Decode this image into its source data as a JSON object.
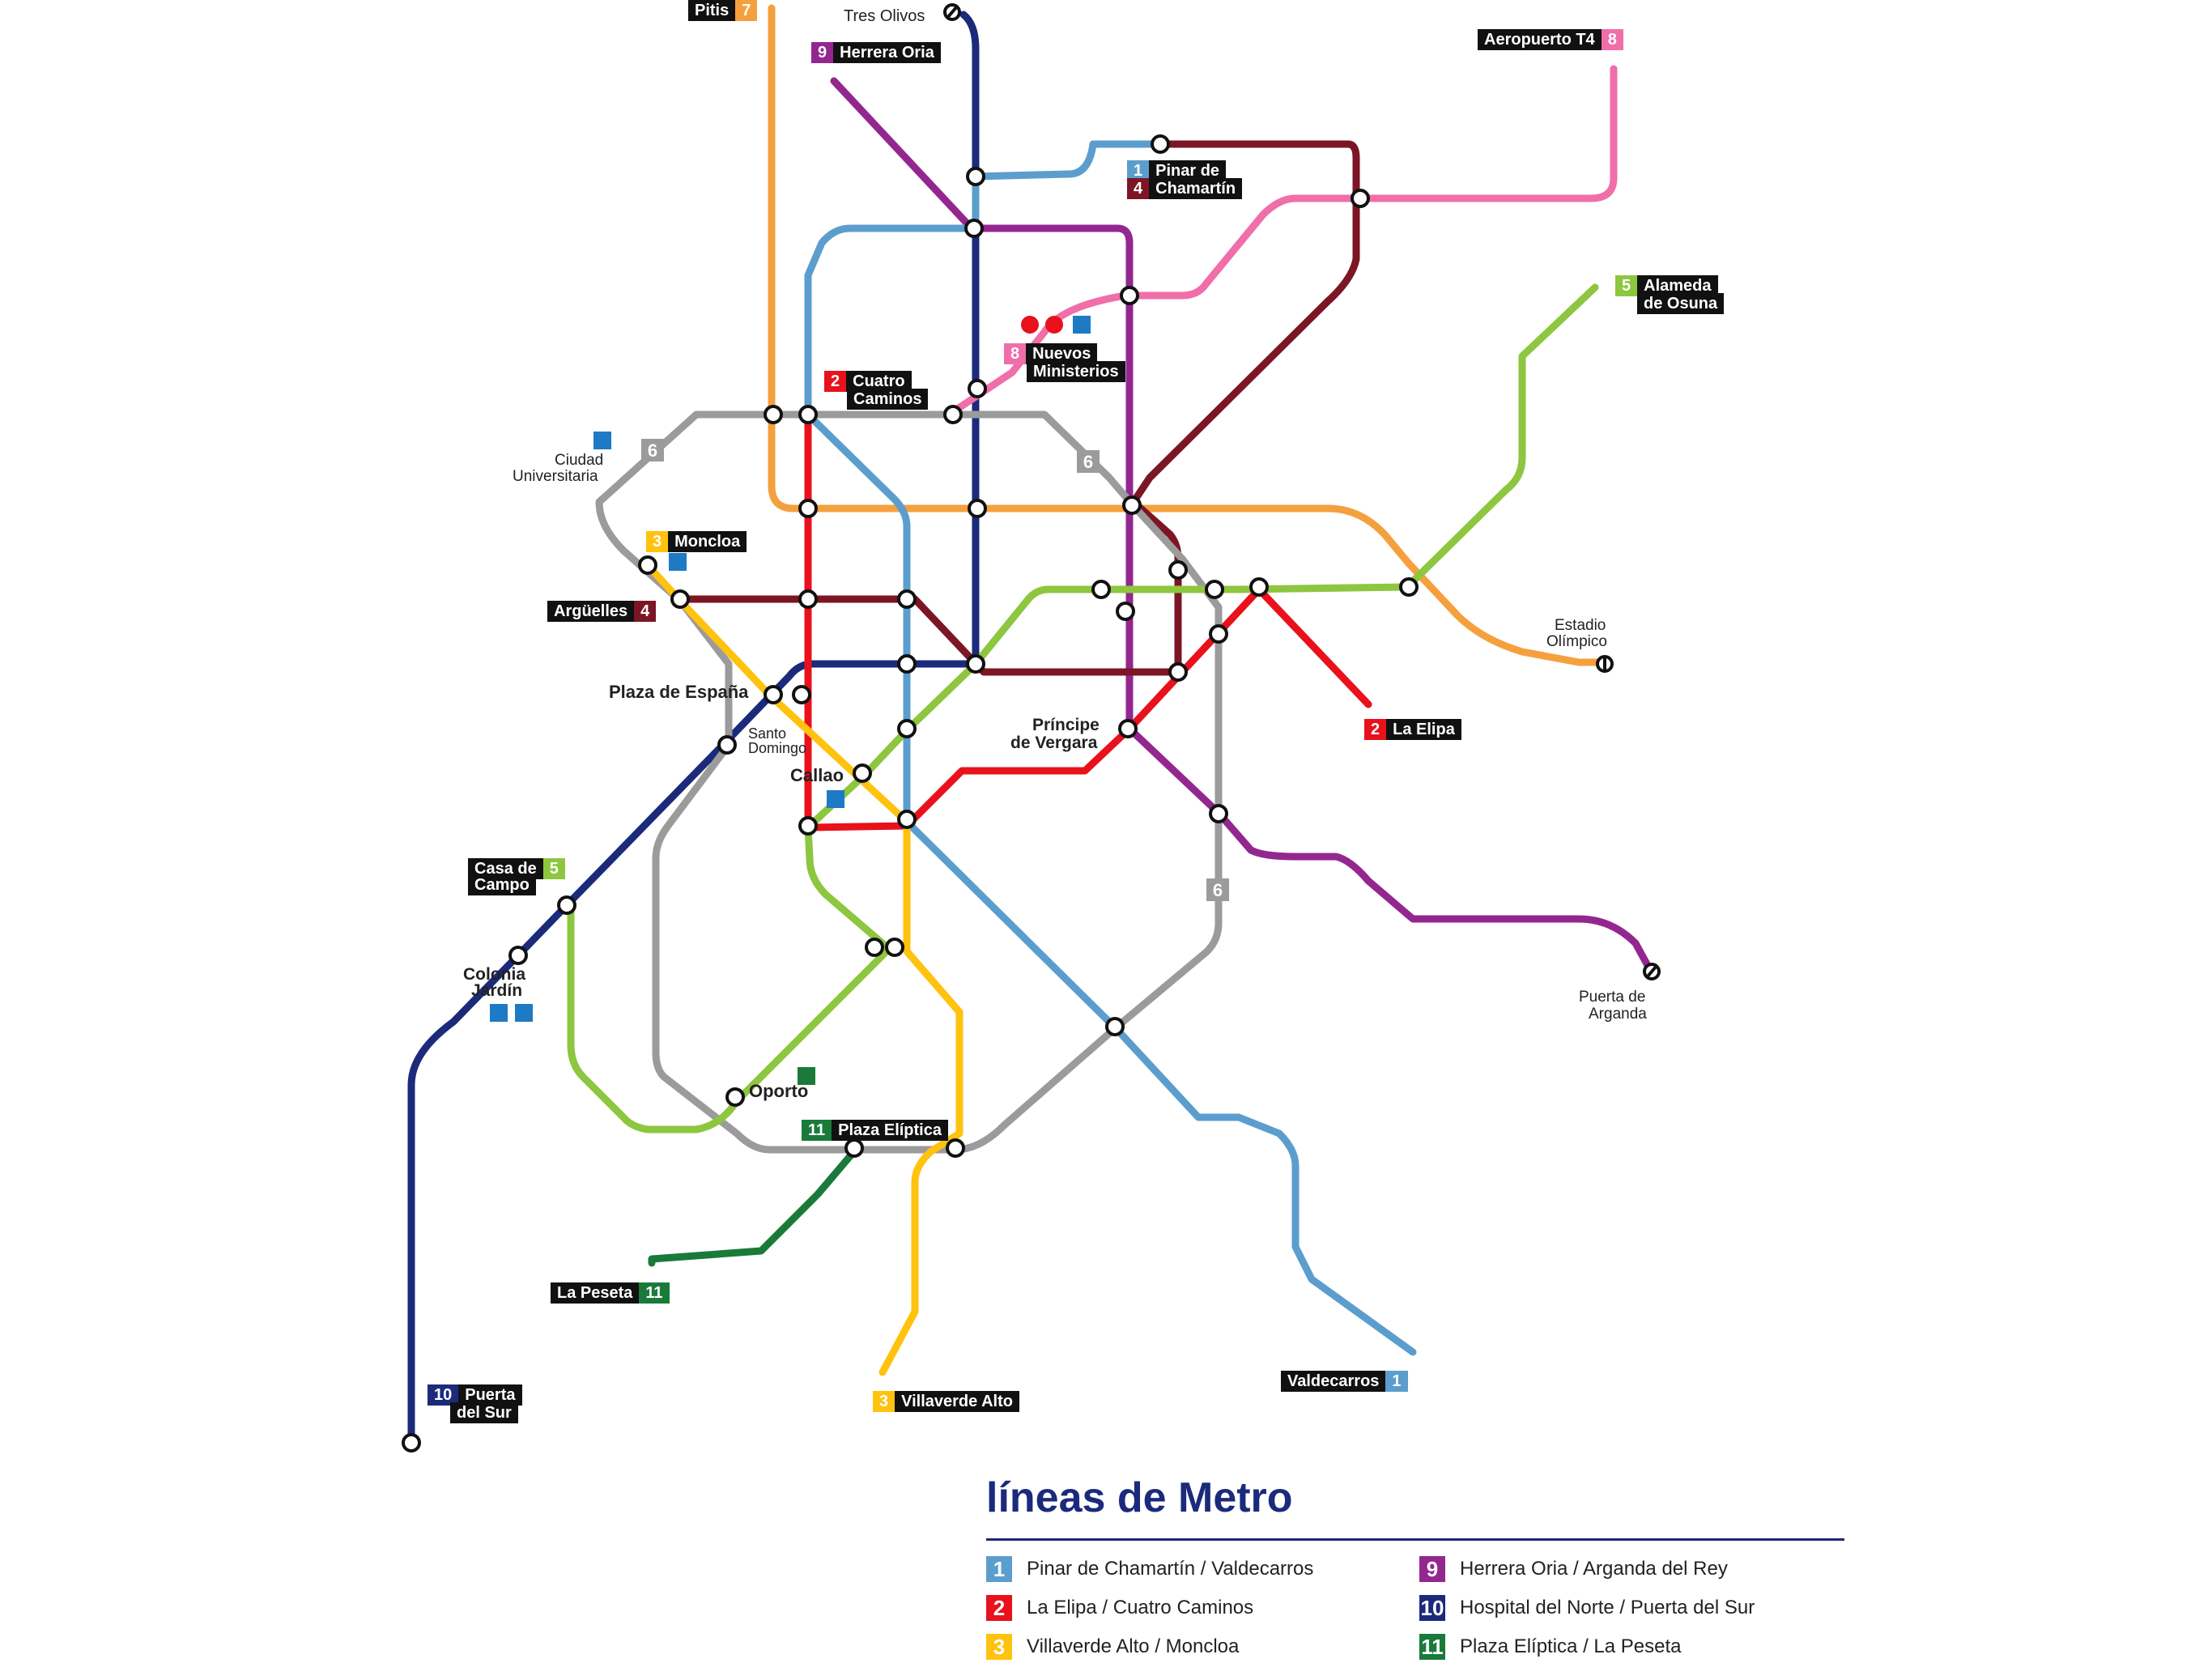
{
  "colors": {
    "line1": "#5b9ecd",
    "line2": "#e8111c",
    "line3": "#ffc20e",
    "line4": "#7c1524",
    "line5": "#8dc63f",
    "line6": "#9b9b9b",
    "line7": "#f5a03f",
    "line8": "#f06ea9",
    "line9": "#93278f",
    "line10": "#1b2a7a",
    "line11": "#1a7a3a"
  },
  "terminals": [
    {
      "id": "pitis",
      "line": "7",
      "name": "Pitis"
    },
    {
      "id": "tres-olivos",
      "line": "10",
      "name": "Tres Olivos"
    },
    {
      "id": "herrera-oria",
      "line": "9",
      "name": "Herrera Oria"
    },
    {
      "id": "aeropuerto",
      "line": "8",
      "name": "Aeropuerto T4"
    },
    {
      "id": "pinar",
      "line": "1",
      "name": "Pinar de"
    },
    {
      "id": "pinar2",
      "line": "4",
      "name": "Chamartín"
    },
    {
      "id": "alameda",
      "line": "5",
      "name": "Alameda"
    },
    {
      "id": "alameda2",
      "line": "",
      "name": "de Osuna"
    },
    {
      "id": "nuevos",
      "line": "8",
      "name": "Nuevos"
    },
    {
      "id": "nuevos2",
      "line": "",
      "name": "Ministerios"
    },
    {
      "id": "cuatro",
      "line": "2",
      "name": "Cuatro"
    },
    {
      "id": "cuatro2",
      "line": "",
      "name": "Caminos"
    },
    {
      "id": "moncloa",
      "line": "3",
      "name": "Moncloa"
    },
    {
      "id": "arguelles",
      "line": "4",
      "name": "Argüelles"
    },
    {
      "id": "la-elipa",
      "line": "2",
      "name": "La Elipa"
    },
    {
      "id": "casa",
      "line": "5",
      "name": "Casa de"
    },
    {
      "id": "casa2",
      "line": "",
      "name": "Campo"
    },
    {
      "id": "plaza-eliptica",
      "line": "11",
      "name": "Plaza Elíptica"
    },
    {
      "id": "la-peseta",
      "line": "11",
      "name": "La Peseta"
    },
    {
      "id": "villaverde",
      "line": "3",
      "name": "Villaverde Alto"
    },
    {
      "id": "valdecarros",
      "line": "1",
      "name": "Valdecarros"
    },
    {
      "id": "puerta-sur",
      "line": "10",
      "name": "Puerta"
    },
    {
      "id": "puerta-sur2",
      "line": "",
      "name": "del Sur"
    }
  ],
  "stations": {
    "tres_olivos": "Tres Olivos",
    "ciudad1": "Ciudad",
    "ciudad2": "Universitaria",
    "plaza_espana": "Plaza de España",
    "santo1": "Santo",
    "santo2": "Domingo",
    "callao": "Callao",
    "principe1": "Príncipe",
    "principe2": "de Vergara",
    "estadio1": "Estadio",
    "estadio2": "Olímpico",
    "colonia1": "Colonia",
    "colonia2": "Jardín",
    "oporto": "Oporto",
    "puerta_arganda1": "Puerta de",
    "puerta_arganda2": "Arganda"
  },
  "line6_badge": "6",
  "legend": {
    "title": "líneas de Metro",
    "items": [
      {
        "num": "1",
        "color": "#5b9ecd",
        "label": "Pinar de Chamartín / Valdecarros"
      },
      {
        "num": "2",
        "color": "#e8111c",
        "label": "La Elipa / Cuatro Caminos"
      },
      {
        "num": "3",
        "color": "#ffc20e",
        "label": "Villaverde Alto / Moncloa"
      },
      {
        "num": "9",
        "color": "#93278f",
        "label": "Herrera Oria / Arganda del Rey"
      },
      {
        "num": "10",
        "color": "#1b2a7a",
        "label": "Hospital del Norte / Puerta del Sur"
      },
      {
        "num": "11",
        "color": "#1a7a3a",
        "label": "Plaza Elíptica / La Peseta"
      }
    ]
  },
  "icons": [
    "wheelchair-icon",
    "parking-icon",
    "bus-icon",
    "info-icon",
    "airport-icon"
  ]
}
